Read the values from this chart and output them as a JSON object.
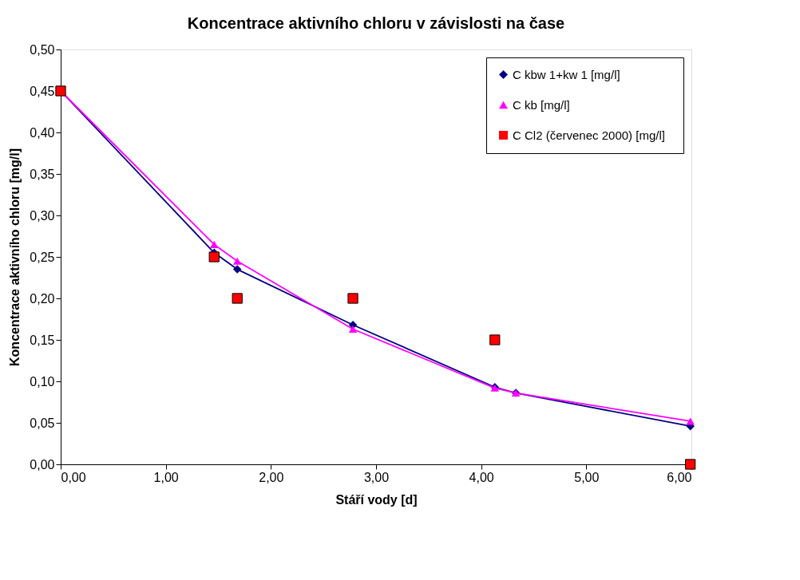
{
  "chart_data": {
    "type": "line",
    "title": "Koncentrace aktivního chloru v závislosti na čase",
    "xlabel": "Stáří vody [d]",
    "ylabel": "Koncentrace aktivního chloru [mg/l]",
    "xlim": [
      0,
      6
    ],
    "xticks": [
      {
        "value": 0,
        "label": "0,00"
      },
      {
        "value": 1,
        "label": "1,00"
      },
      {
        "value": 2,
        "label": "2,00"
      },
      {
        "value": 3,
        "label": "3,00"
      },
      {
        "value": 4,
        "label": "4,00"
      },
      {
        "value": 5,
        "label": "5,00"
      },
      {
        "value": 6,
        "label": "6,00"
      }
    ],
    "ylim": [
      0,
      0.5
    ],
    "yticks": [
      {
        "value": 0,
        "label": "0,00"
      },
      {
        "value": 0.05,
        "label": "0,05"
      },
      {
        "value": 0.1,
        "label": "0,10"
      },
      {
        "value": 0.15,
        "label": "0,15"
      },
      {
        "value": 0.2,
        "label": "0,20"
      },
      {
        "value": 0.25,
        "label": "0,25"
      },
      {
        "value": 0.3,
        "label": "0,30"
      },
      {
        "value": 0.35,
        "label": "0,35"
      },
      {
        "value": 0.4,
        "label": "0,40"
      },
      {
        "value": 0.45,
        "label": "0,45"
      },
      {
        "value": 0.5,
        "label": "0,50"
      }
    ],
    "grid": false,
    "legend": "top right",
    "series": [
      {
        "name": "C kbw 1+kw 1 [mg/l]",
        "color": "#000080",
        "marker": "diamond",
        "x": [
          0,
          1.46,
          1.68,
          2.78,
          4.13,
          4.33,
          5.99
        ],
        "values": [
          0.45,
          0.255,
          0.235,
          0.168,
          0.093,
          0.086,
          0.046
        ]
      },
      {
        "name": "C kb [mg/l]",
        "color": "#ff00ff",
        "marker": "triangle",
        "x": [
          0,
          1.46,
          1.68,
          2.78,
          4.13,
          4.33,
          5.99
        ],
        "values": [
          0.45,
          0.265,
          0.245,
          0.163,
          0.092,
          0.086,
          0.052
        ]
      },
      {
        "name": "C Cl2  (červenec 2000)  [mg/l]",
        "color": "#ff0000",
        "type": "scatter",
        "marker": "square",
        "x": [
          0,
          1.46,
          1.68,
          2.78,
          4.13,
          5.99
        ],
        "values": [
          0.45,
          0.25,
          0.2,
          0.2,
          0.15,
          0.0
        ]
      }
    ]
  }
}
